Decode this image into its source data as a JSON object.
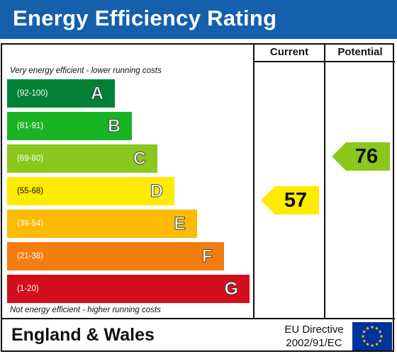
{
  "header": {
    "title": "Energy Efficiency Rating",
    "bg_color": "#1560ad"
  },
  "columns": {
    "current": "Current",
    "potential": "Potential"
  },
  "notes": {
    "top": "Very energy efficient - lower running costs",
    "bottom": "Not energy efficient - higher running costs"
  },
  "bands": [
    {
      "range": "(92-100)",
      "letter": "A",
      "color": "#008136"
    },
    {
      "range": "(81-91)",
      "letter": "B",
      "color": "#19b424"
    },
    {
      "range": "(69-80)",
      "letter": "C",
      "color": "#8cc71e"
    },
    {
      "range": "(55-68)",
      "letter": "D",
      "color": "#ffeb00"
    },
    {
      "range": "(39-54)",
      "letter": "E",
      "color": "#fcbb00"
    },
    {
      "range": "(21-38)",
      "letter": "F",
      "color": "#f47d10"
    },
    {
      "range": "(1-20)",
      "letter": "G",
      "color": "#d30e1d"
    }
  ],
  "ratings": {
    "current": {
      "value": "57",
      "band": "D",
      "color": "#ffeb00"
    },
    "potential": {
      "value": "76",
      "band": "C",
      "color": "#8cc71e"
    }
  },
  "footer": {
    "region": "England & Wales",
    "directive_line1": "EU Directive",
    "directive_line2": "2002/91/EC",
    "flag_icon": "eu-flag-icon"
  }
}
